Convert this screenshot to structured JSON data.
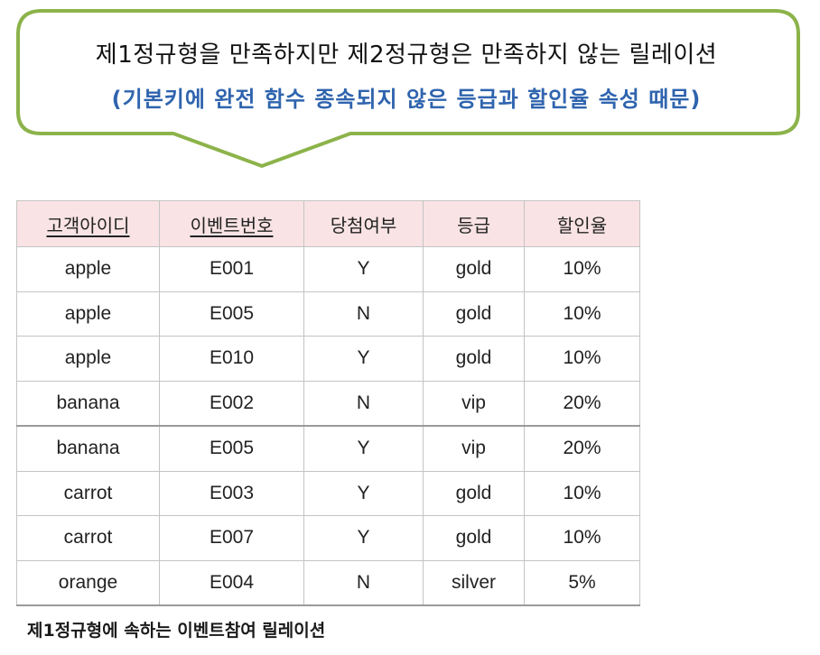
{
  "callout": {
    "line1": "제1정규형을 만족하지만 제2정규형은 만족하지 않는 릴레이션",
    "line2": "(기본키에 완전 함수 종속되지 않은 등급과 할인율 속성 때문)",
    "border_color": "#8cb34a",
    "line2_color": "#2f64ae"
  },
  "table": {
    "columns": [
      "고객아이디",
      "이벤트번호",
      "당첨여부",
      "등급",
      "할인율"
    ],
    "underlined_columns": [
      0,
      1
    ],
    "header_bg": "#f9e3e4",
    "rows": [
      [
        "apple",
        "E001",
        "Y",
        "gold",
        "10%"
      ],
      [
        "apple",
        "E005",
        "N",
        "gold",
        "10%"
      ],
      [
        "apple",
        "E010",
        "Y",
        "gold",
        "10%"
      ],
      [
        "banana",
        "E002",
        "N",
        "vip",
        "20%"
      ],
      [
        "banana",
        "E005",
        "Y",
        "vip",
        "20%"
      ],
      [
        "carrot",
        "E003",
        "Y",
        "gold",
        "10%"
      ],
      [
        "carrot",
        "E007",
        "Y",
        "gold",
        "10%"
      ],
      [
        "orange",
        "E004",
        "N",
        "silver",
        "5%"
      ]
    ]
  },
  "caption": "제1정규형에 속하는 이벤트참여 릴레이션"
}
